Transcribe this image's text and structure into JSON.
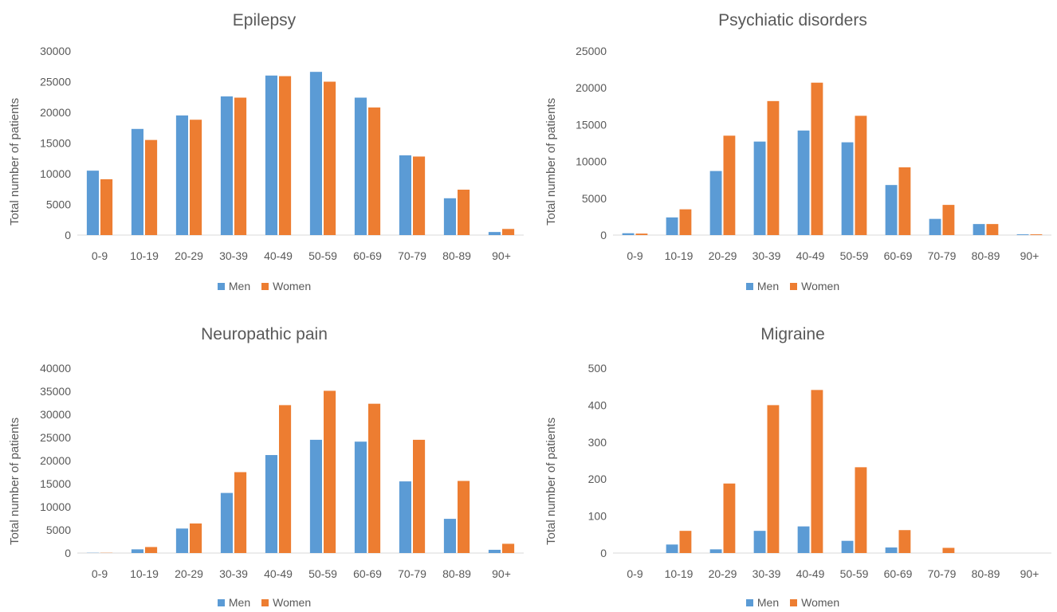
{
  "colors": {
    "men": "#5b9bd5",
    "women": "#ed7d31",
    "axis": "#d9d9d9",
    "text": "#595959"
  },
  "chart_data": [
    {
      "type": "bar",
      "title": "Epilepsy",
      "ylabel": "Total number of patients",
      "xlabel": "",
      "categories": [
        "0-9",
        "10-19",
        "20-29",
        "30-39",
        "40-49",
        "50-59",
        "60-69",
        "70-79",
        "80-89",
        "90+"
      ],
      "ylim": [
        0,
        30000
      ],
      "yticks": [
        "0",
        "5000",
        "10000",
        "15000",
        "20000",
        "25000",
        "30000"
      ],
      "ytick_values": [
        0,
        5000,
        10000,
        15000,
        20000,
        25000,
        30000
      ],
      "legend_position": "bottom",
      "series": [
        {
          "name": "Men",
          "values": [
            10500,
            17300,
            19500,
            22600,
            26000,
            26600,
            22400,
            13000,
            6000,
            500
          ]
        },
        {
          "name": "Women",
          "values": [
            9100,
            15500,
            18800,
            22400,
            25900,
            25000,
            20800,
            12800,
            7400,
            1000
          ]
        }
      ]
    },
    {
      "type": "bar",
      "title": "Psychiatic disorders",
      "ylabel": "Total number of patients",
      "xlabel": "",
      "categories": [
        "0-9",
        "10-19",
        "20-29",
        "30-39",
        "40-49",
        "50-59",
        "60-69",
        "70-79",
        "80-89",
        "90+"
      ],
      "ylim": [
        0,
        25000
      ],
      "yticks": [
        "0",
        "5000",
        "10000",
        "15000",
        "20000",
        "25000"
      ],
      "ytick_values": [
        0,
        5000,
        10000,
        15000,
        20000,
        25000
      ],
      "legend_position": "bottom",
      "series": [
        {
          "name": "Men",
          "values": [
            250,
            2400,
            8700,
            12700,
            14200,
            12600,
            6800,
            2200,
            1500,
            100
          ]
        },
        {
          "name": "Women",
          "values": [
            200,
            3500,
            13500,
            18200,
            20700,
            16200,
            9200,
            4100,
            1500,
            100
          ]
        }
      ]
    },
    {
      "type": "bar",
      "title": "Neuropathic pain",
      "ylabel": "Total number of patients",
      "xlabel": "",
      "categories": [
        "0-9",
        "10-19",
        "20-29",
        "30-39",
        "40-49",
        "50-59",
        "60-69",
        "70-79",
        "80-89",
        "90+"
      ],
      "ylim": [
        0,
        40000
      ],
      "yticks": [
        "0",
        "5000",
        "10000",
        "15000",
        "20000",
        "25000",
        "30000",
        "35000",
        "40000"
      ],
      "ytick_values": [
        0,
        5000,
        10000,
        15000,
        20000,
        25000,
        30000,
        35000,
        40000
      ],
      "legend_position": "bottom",
      "series": [
        {
          "name": "Men",
          "values": [
            50,
            800,
            5300,
            13000,
            21200,
            24500,
            24100,
            15500,
            7400,
            700
          ]
        },
        {
          "name": "Women",
          "values": [
            50,
            1300,
            6400,
            17500,
            32000,
            35100,
            32300,
            24500,
            15600,
            2000
          ]
        }
      ]
    },
    {
      "type": "bar",
      "title": "Migraine",
      "ylabel": "Total number of patients",
      "xlabel": "",
      "categories": [
        "0-9",
        "10-19",
        "20-29",
        "30-39",
        "40-49",
        "50-59",
        "60-69",
        "70-79",
        "80-89",
        "90+"
      ],
      "ylim": [
        0,
        500
      ],
      "yticks": [
        "0",
        "100",
        "200",
        "300",
        "400",
        "500"
      ],
      "ytick_values": [
        0,
        100,
        200,
        300,
        400,
        500
      ],
      "legend_position": "bottom",
      "series": [
        {
          "name": "Men",
          "values": [
            0,
            23,
            10,
            60,
            72,
            33,
            15,
            0,
            0,
            0
          ]
        },
        {
          "name": "Women",
          "values": [
            0,
            60,
            188,
            400,
            441,
            232,
            62,
            14,
            0,
            0
          ]
        }
      ]
    }
  ]
}
